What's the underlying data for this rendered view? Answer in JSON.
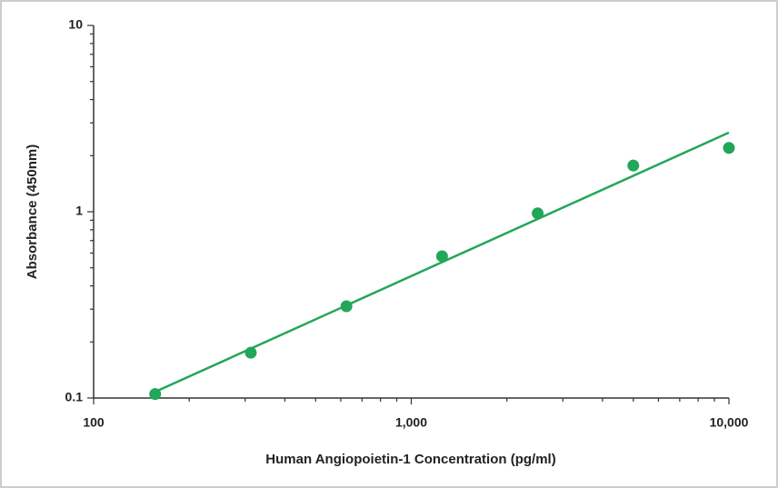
{
  "chart_data": {
    "type": "scatter",
    "x_label": "Human Angiopoietin-1 Concentration (pg/ml)",
    "y_label": "Absorbance (450nm)",
    "xscale": "log",
    "yscale": "log",
    "xlim": [
      100,
      10000
    ],
    "ylim": [
      0.1,
      10
    ],
    "xticks": [
      100,
      {
        "value": 1000,
        "label": "1,000"
      },
      {
        "value": 10000,
        "label": "10,000"
      }
    ],
    "yticks": [
      0.1,
      1,
      10
    ],
    "xminorticks": [
      200,
      300,
      400,
      500,
      600,
      700,
      800,
      900,
      2000,
      3000,
      4000,
      5000,
      6000,
      7000,
      8000,
      9000
    ],
    "yminorticks": [
      0.2,
      0.3,
      0.4,
      0.5,
      0.6,
      0.7,
      0.8,
      0.9,
      2,
      3,
      4,
      5,
      6,
      7,
      8,
      9
    ],
    "color": "#22a65a",
    "x": [
      156.25,
      312.5,
      625,
      1250,
      2500,
      5000,
      10000
    ],
    "values": [
      0.105,
      0.175,
      0.311,
      0.577,
      0.98,
      1.77,
      2.2
    ],
    "fit_line": {
      "x": [
        156.25,
        10000
      ],
      "values": [
        0.108,
        2.66
      ]
    }
  }
}
